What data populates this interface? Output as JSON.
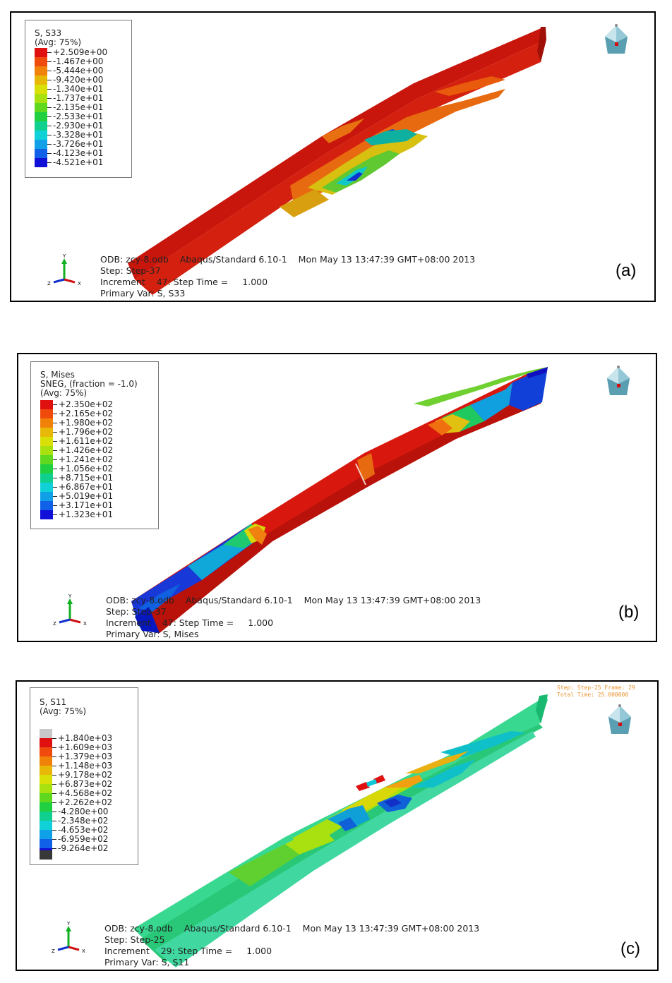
{
  "panels": [
    {
      "id": "a",
      "label": "(a)",
      "legend_title": [
        "S, S33",
        "(Avg: 75%)"
      ],
      "legend_values": [
        "+2.509e+00",
        "-1.467e+00",
        "-5.444e+00",
        "-9.420e+00",
        "-1.340e+01",
        "-1.737e+01",
        "-2.135e+01",
        "-2.533e+01",
        "-2.930e+01",
        "-3.328e+01",
        "-3.726e+01",
        "-4.123e+01",
        "-4.521e+01"
      ],
      "info": {
        "odb_prefix": "ODB:",
        "odb_file": "zcy-8.odb",
        "solver": "Abaqus/Standard 6.10-1",
        "date": "Mon May 13 13:47:39 GMT+08:00 2013",
        "step_prefix": "Step:",
        "step": "Step-37",
        "increment_prefix": "Increment",
        "increment": "47: Step Time =",
        "step_time": "1.000",
        "primary_var": "Primary Var: S, S33"
      }
    },
    {
      "id": "b",
      "label": "(b)",
      "legend_title": [
        "S, Mises",
        "SNEG, (fraction = -1.0)",
        "(Avg: 75%)"
      ],
      "legend_values": [
        "+2.350e+02",
        "+2.165e+02",
        "+1.980e+02",
        "+1.796e+02",
        "+1.611e+02",
        "+1.426e+02",
        "+1.241e+02",
        "+1.056e+02",
        "+8.715e+01",
        "+6.867e+01",
        "+5.019e+01",
        "+3.171e+01",
        "+1.323e+01"
      ],
      "info": {
        "odb_prefix": "ODB:",
        "odb_file": "zcy-8.odb",
        "solver": "Abaqus/Standard 6.10-1",
        "date": "Mon May 13 13:47:39 GMT+08:00 2013",
        "step_prefix": "Step:",
        "step": "Step-37",
        "increment_prefix": "Increment",
        "increment": "47: Step Time =",
        "step_time": "1.000",
        "primary_var": "Primary Var: S, Mises"
      }
    },
    {
      "id": "c",
      "label": "(c)",
      "legend_title": [
        "S, S11",
        "(Avg: 75%)"
      ],
      "legend_values": [
        "+1.840e+03",
        "+1.609e+03",
        "+1.379e+03",
        "+1.148e+03",
        "+9.178e+02",
        "+6.873e+02",
        "+4.568e+02",
        "+2.262e+02",
        "-4.280e+00",
        "-2.348e+02",
        "-4.653e+02",
        "-6.959e+02",
        "-9.264e+02"
      ],
      "frame_note": [
        "Step: Step-25  Frame: 29",
        "Total Time: 25.000000"
      ],
      "info": {
        "odb_prefix": "ODB:",
        "odb_file": "zcy-8.odb",
        "solver": "Abaqus/Standard 6.10-1",
        "date": "Mon May 13 13:47:39 GMT+08:00 2013",
        "step_prefix": "Step:",
        "step": "Step-25",
        "increment_prefix": "Increment",
        "increment": "29: Step Time =",
        "step_time": "1.000",
        "primary_var": "Primary Var: S, S11"
      }
    }
  ],
  "colors": {
    "spectrum": [
      "#e01010",
      "#f04a0c",
      "#f0820a",
      "#e8b808",
      "#d8e008",
      "#a8e010",
      "#60d820",
      "#20d040",
      "#10d090",
      "#10d0d8",
      "#10a0e8",
      "#1060e8",
      "#1010d8"
    ],
    "spectrum_c_extra_top": "#c8c8c8",
    "spectrum_c_extra_bottom": "#383838"
  },
  "axis_labels": {
    "y": "Y",
    "x": "X",
    "z": "Z"
  }
}
